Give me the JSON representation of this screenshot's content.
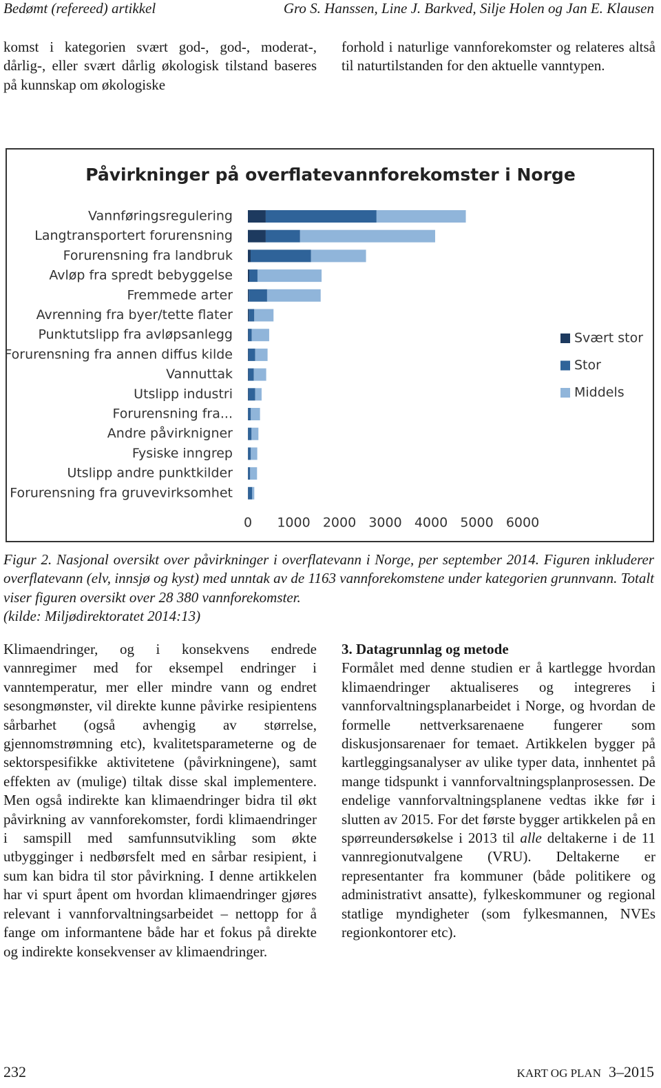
{
  "header": {
    "label": "Bedømt (refereed) artikkel",
    "authors": "Gro S. Hanssen, Line J. Barkved, Silje Holen og Jan E. Klausen"
  },
  "intro": {
    "left": "komst i kategorien svært god-, god-, moderat-, dårlig-, eller svært dårlig økologisk tilstand baseres på kunnskap om økologiske",
    "right": "forhold i naturlige vannforekomster og relateres altså til naturtilstanden for den aktuelle vanntypen."
  },
  "chart_data": {
    "type": "stacked-barh",
    "title": "Påvirkninger på overflatevannforekomster i Norge",
    "categories": [
      "Vannføringsregulering",
      "Langtransportert forurensning",
      "Forurensning fra landbruk",
      "Avløp fra spredt bebyggelse",
      "Fremmede arter",
      "Avrenning fra byer/tette flater",
      "Punktutslipp fra avløpsanlegg",
      "Forurensning fra annen diffus kilde",
      "Vannuttak",
      "Utslipp industri",
      "Forurensning fra...",
      "Andre påvirknigner",
      "Fysiske inngrep",
      "Utslipp andre punktkilder",
      "Forurensning fra gruvevirksomhet"
    ],
    "series": [
      {
        "name": "Svært stor",
        "color": "#1d3a5f",
        "values": [
          390,
          390,
          60,
          30,
          20,
          20,
          10,
          10,
          10,
          10,
          5,
          5,
          5,
          5,
          5
        ]
      },
      {
        "name": "Stor",
        "color": "#2f6399",
        "values": [
          2420,
          750,
          1320,
          180,
          400,
          120,
          75,
          150,
          120,
          150,
          60,
          75,
          60,
          45,
          90
        ]
      },
      {
        "name": "Middels",
        "color": "#90b5da",
        "values": [
          1950,
          2950,
          1200,
          1400,
          1170,
          420,
          380,
          270,
          270,
          140,
          200,
          150,
          140,
          150,
          45
        ]
      }
    ],
    "xlim": [
      0,
      6000
    ],
    "xticks": [
      0,
      1000,
      2000,
      3000,
      4000,
      5000,
      6000
    ],
    "legend": "right"
  },
  "caption": {
    "text": "Figur 2. Nasjonal oversikt over påvirkninger i overflatevann i Norge, per september 2014. Figuren inkluderer overflatevann (elv, innsjø og kyst) med unntak av de 1163 vannforekomstene under kategorien grunnvann. Totalt viser figuren oversikt over 28 380 vannforekomster.",
    "source": "(kilde: Miljødirektoratet 2014:13)"
  },
  "body": {
    "left": "Klimaendringer, og i konsekvens endrede vannregimer med for eksempel endringer i vanntemperatur, mer eller mindre vann og endret sesongmønster, vil direkte kunne påvirke resipientens sårbarhet (også avhengig av størrelse, gjennomstrømning etc), kvalitetsparameterne og de sektorspesifikke aktivitetene (påvirkningene), samt effekten av (mulige) tiltak disse skal implementere. Men også indirekte kan klimaendringer bidra til økt påvirkning av vannforekomster, fordi klimaendringer i samspill med samfunnsutvikling som økte utbygginger i nedbørsfelt med en sårbar resipient, i sum kan bidra til stor påvirkning. I denne artikkelen har vi spurt åpent om hvordan klimaendringer gjøres relevant i vannforvaltningsarbeidet – nettopp for å fange om informantene både har et fokus på direkte og indirekte konsekvenser av klimaendringer.",
    "heading": "3. Datagrunnlag og metode",
    "right": [
      "Formålet med denne studien er å kartlegge hvordan klimaendringer aktualiseres og integreres i vannforvaltningsplanarbeidet i Norge, og hvordan de formelle nettverksarenaene fungerer som diskusjonsarenaer for temaet. Artikkelen bygger på kartleggingsanalyser av ulike typer data, innhentet på mange tidspunkt i vannforvaltningsplanprosessen. De endelige vannforvaltningsplanene vedtas ikke før i slutten av 2015. For det første bygger artikkelen på en spørreundersøkelse i 2013 til ",
      "alle",
      " deltakerne i de 11 vannregionutvalgene (VRU). Deltakerne er representanter fra kommuner (både politikere og administrativt ansatte), fylkeskommuner og regional statlige myndigheter (som fylkesmannen, NVEs regionkontorer etc)."
    ]
  },
  "footer": {
    "page": "232",
    "journal": "KART OG PLAN",
    "issue": "3–2015"
  }
}
